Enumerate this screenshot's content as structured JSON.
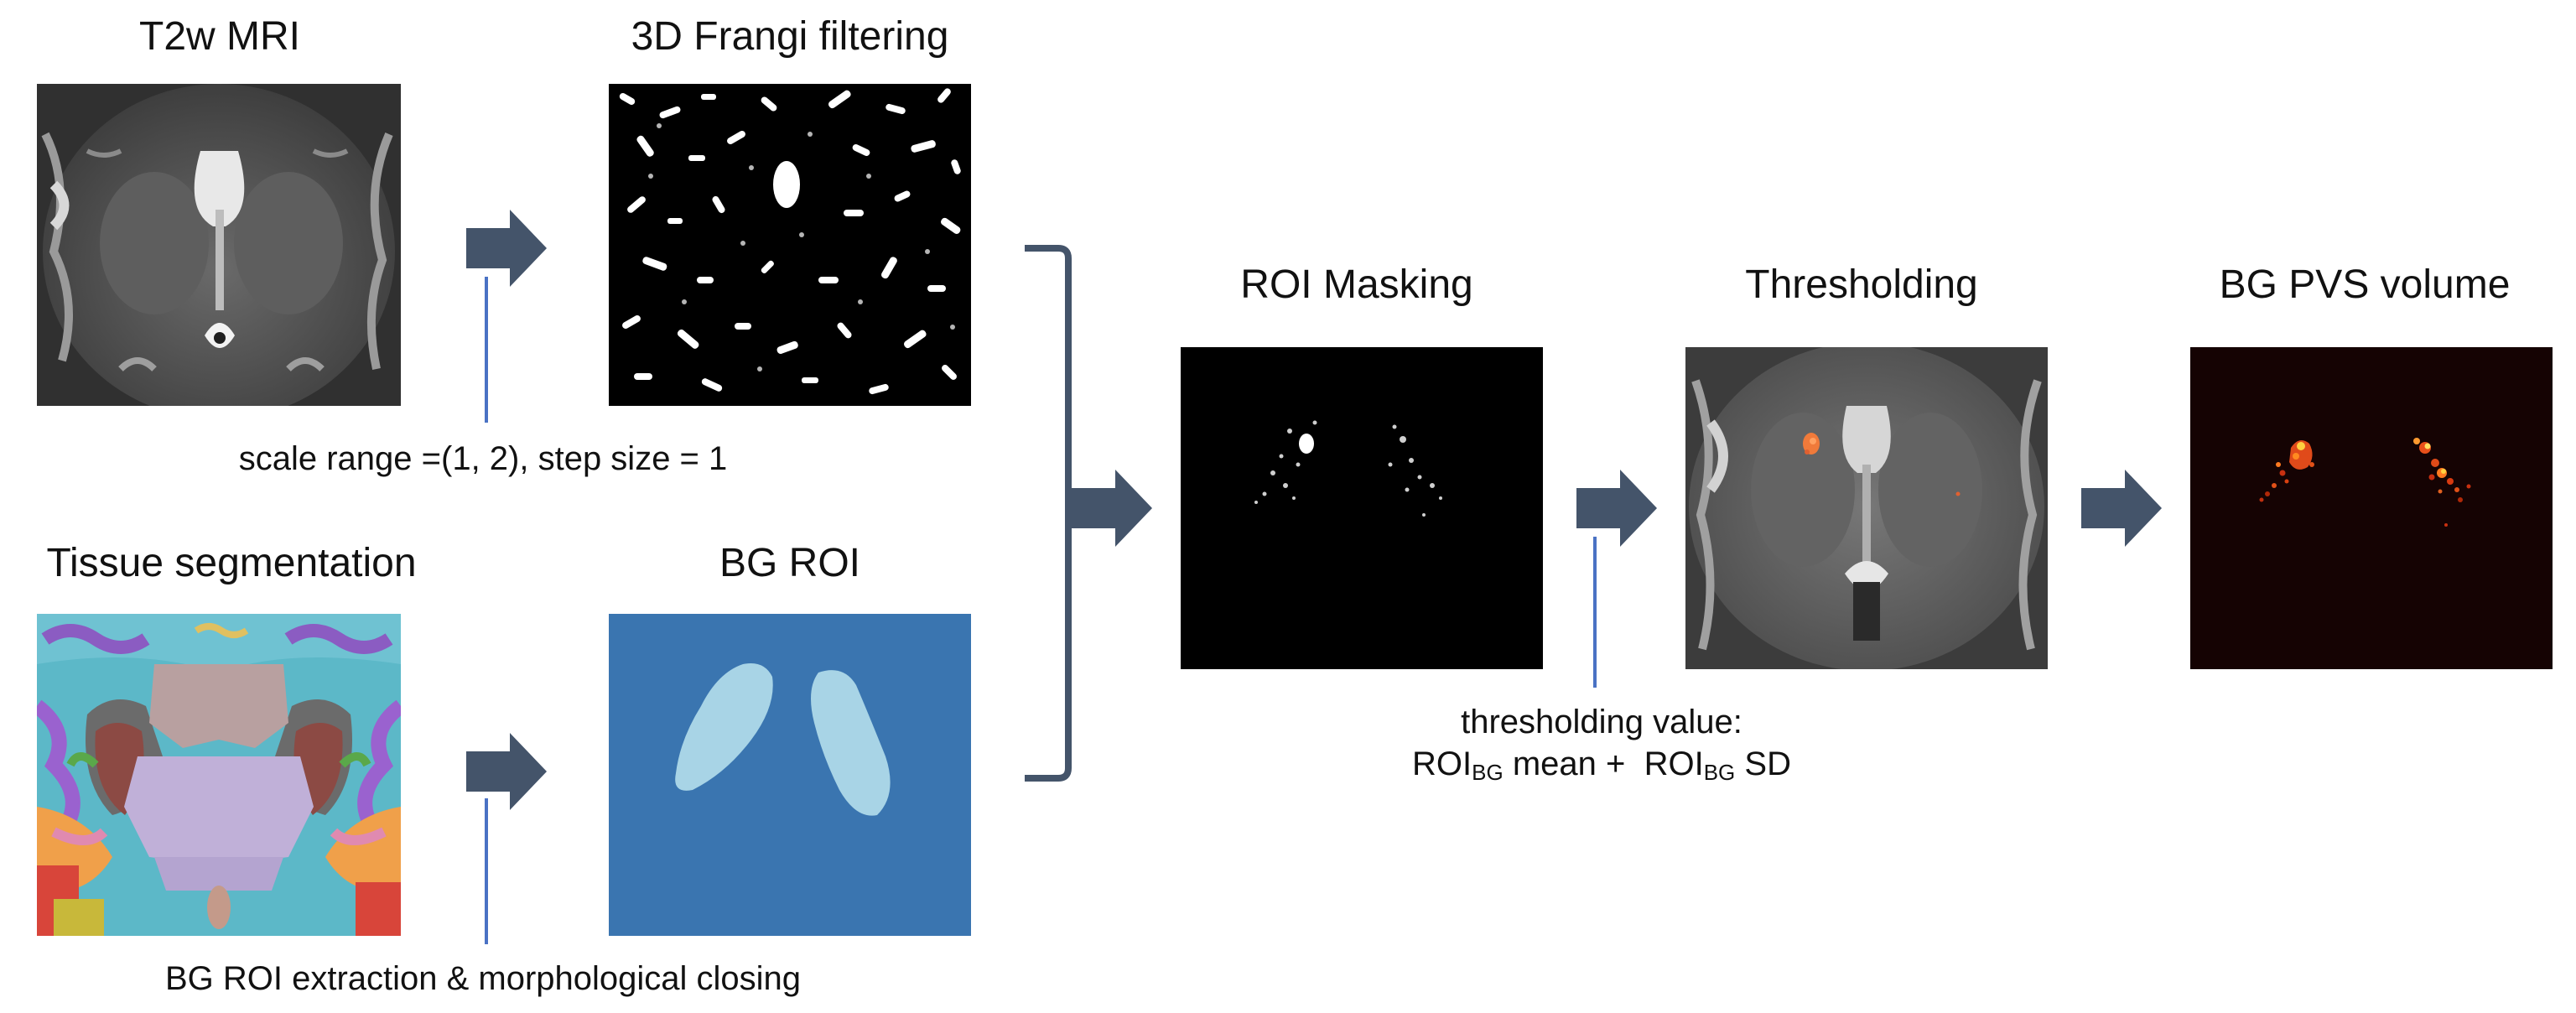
{
  "panels": {
    "t2w": {
      "title": "T2w MRI"
    },
    "frangi": {
      "title": "3D Frangi filtering"
    },
    "tissue": {
      "title": "Tissue segmentation"
    },
    "bgroi": {
      "title": "BG ROI"
    },
    "roimask": {
      "title": "ROI Masking"
    },
    "thresh": {
      "title": "Thresholding"
    },
    "pvs": {
      "title": "BG PVS volume"
    }
  },
  "captions": {
    "frangi_params": "scale range =(1, 2), step size = 1",
    "roi_extraction": "BG ROI extraction & morphological closing",
    "thresholding_line1": "thresholding value:",
    "thresholding_line2": {
      "roi_a": "ROI",
      "sub_a": "BG",
      "mean_text": " mean +  ",
      "roi_b": "ROI",
      "sub_b": "BG",
      "sd_text": " SD"
    }
  },
  "colors": {
    "arrow": "#44546a",
    "leader_line": "#4a72c4",
    "bg_roi_background": "#3a75b0",
    "bg_roi_shape": "#a8d4e6"
  }
}
